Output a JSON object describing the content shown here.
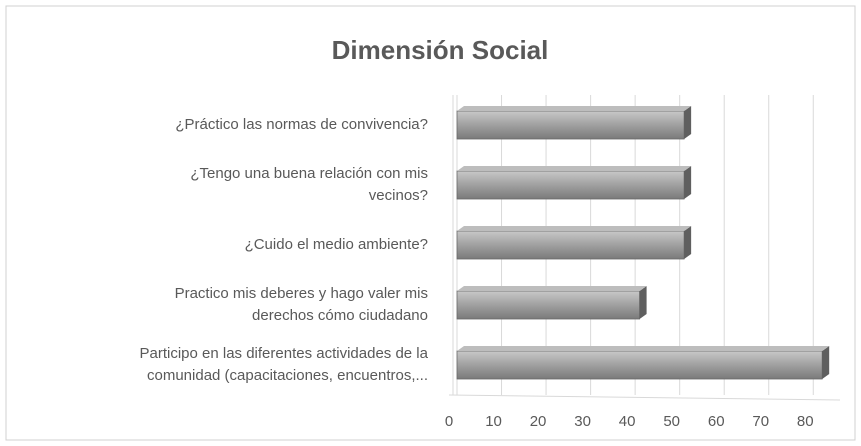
{
  "chart_data": {
    "type": "hbar",
    "title": "Dimensión Social",
    "categories": [
      "¿Práctico las normas de convivencia?",
      "¿Tengo una buena relación con mis\nvecinos?",
      "¿Cuido el medio ambiente?",
      "Practico mis deberes y hago valer mis\nderechos cómo ciudadano",
      "Participo en las diferentes actividades de la\ncomunidad (capacitaciones, encuentros,..."
    ],
    "values": [
      51,
      51,
      51,
      41,
      82
    ],
    "color": "#9a9a9a",
    "xlim": [
      0,
      86
    ],
    "xticks": [
      0,
      10,
      20,
      30,
      40,
      50,
      60,
      70,
      80
    ],
    "grid": true
  }
}
